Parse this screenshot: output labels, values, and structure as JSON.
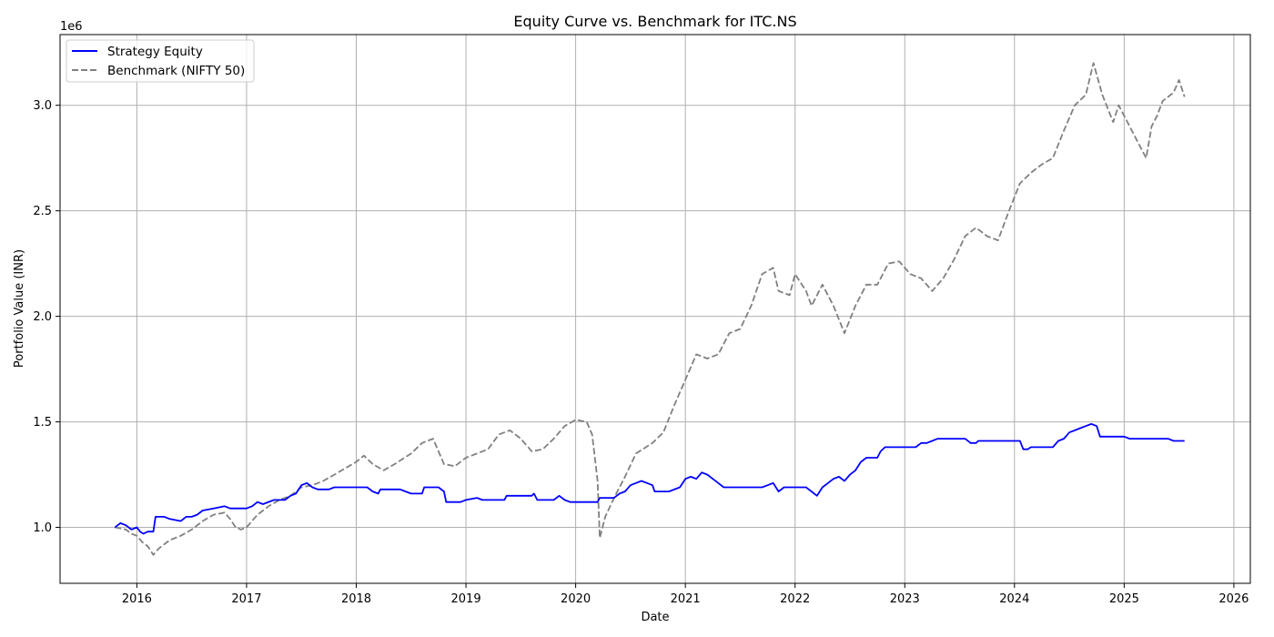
{
  "chart_data": {
    "type": "line",
    "title": "Equity Curve vs. Benchmark for ITC.NS",
    "xlabel": "Date",
    "ylabel": "Portfolio Value (INR)",
    "y_scale_label": "1e6",
    "xlim": [
      2015.3,
      2026.15
    ],
    "ylim": [
      0.735,
      3.335
    ],
    "x_ticks": [
      2016,
      2017,
      2018,
      2019,
      2020,
      2021,
      2022,
      2023,
      2024,
      2025,
      2026
    ],
    "x_tick_labels": [
      "2016",
      "2017",
      "2018",
      "2019",
      "2020",
      "2021",
      "2022",
      "2023",
      "2024",
      "2025",
      "2026"
    ],
    "y_ticks": [
      1.0,
      1.5,
      2.0,
      2.5,
      3.0
    ],
    "y_tick_labels": [
      "1.0",
      "1.5",
      "2.0",
      "2.5",
      "3.0"
    ],
    "grid": true,
    "legend_position": "top-left",
    "series": [
      {
        "name": "Strategy Equity",
        "color": "#0000ff",
        "style": "solid",
        "points": [
          [
            2015.8,
            1.0
          ],
          [
            2015.85,
            1.02
          ],
          [
            2015.9,
            1.01
          ],
          [
            2015.95,
            0.99
          ],
          [
            2016.0,
            1.0
          ],
          [
            2016.03,
            0.98
          ],
          [
            2016.06,
            0.97
          ],
          [
            2016.1,
            0.98
          ],
          [
            2016.15,
            0.98
          ],
          [
            2016.17,
            1.05
          ],
          [
            2016.25,
            1.05
          ],
          [
            2016.3,
            1.04
          ],
          [
            2016.4,
            1.03
          ],
          [
            2016.45,
            1.05
          ],
          [
            2016.5,
            1.05
          ],
          [
            2016.55,
            1.06
          ],
          [
            2016.6,
            1.08
          ],
          [
            2016.7,
            1.09
          ],
          [
            2016.8,
            1.1
          ],
          [
            2016.85,
            1.09
          ],
          [
            2016.95,
            1.09
          ],
          [
            2017.0,
            1.09
          ],
          [
            2017.05,
            1.1
          ],
          [
            2017.1,
            1.12
          ],
          [
            2017.15,
            1.11
          ],
          [
            2017.25,
            1.13
          ],
          [
            2017.35,
            1.13
          ],
          [
            2017.4,
            1.15
          ],
          [
            2017.45,
            1.16
          ],
          [
            2017.5,
            1.2
          ],
          [
            2017.55,
            1.21
          ],
          [
            2017.6,
            1.19
          ],
          [
            2017.65,
            1.18
          ],
          [
            2017.75,
            1.18
          ],
          [
            2017.8,
            1.19
          ],
          [
            2017.9,
            1.19
          ],
          [
            2018.0,
            1.19
          ],
          [
            2018.1,
            1.19
          ],
          [
            2018.15,
            1.17
          ],
          [
            2018.2,
            1.16
          ],
          [
            2018.22,
            1.18
          ],
          [
            2018.4,
            1.18
          ],
          [
            2018.45,
            1.17
          ],
          [
            2018.5,
            1.16
          ],
          [
            2018.6,
            1.16
          ],
          [
            2018.62,
            1.19
          ],
          [
            2018.75,
            1.19
          ],
          [
            2018.8,
            1.17
          ],
          [
            2018.82,
            1.12
          ],
          [
            2018.95,
            1.12
          ],
          [
            2019.0,
            1.13
          ],
          [
            2019.1,
            1.14
          ],
          [
            2019.15,
            1.13
          ],
          [
            2019.3,
            1.13
          ],
          [
            2019.35,
            1.13
          ],
          [
            2019.37,
            1.15
          ],
          [
            2019.5,
            1.15
          ],
          [
            2019.6,
            1.15
          ],
          [
            2019.62,
            1.16
          ],
          [
            2019.65,
            1.13
          ],
          [
            2019.8,
            1.13
          ],
          [
            2019.85,
            1.15
          ],
          [
            2019.9,
            1.13
          ],
          [
            2019.95,
            1.12
          ],
          [
            2020.1,
            1.12
          ],
          [
            2020.15,
            1.12
          ],
          [
            2020.2,
            1.12
          ],
          [
            2020.22,
            1.14
          ],
          [
            2020.35,
            1.14
          ],
          [
            2020.4,
            1.16
          ],
          [
            2020.45,
            1.17
          ],
          [
            2020.5,
            1.2
          ],
          [
            2020.55,
            1.21
          ],
          [
            2020.6,
            1.22
          ],
          [
            2020.65,
            1.21
          ],
          [
            2020.7,
            1.2
          ],
          [
            2020.72,
            1.17
          ],
          [
            2020.85,
            1.17
          ],
          [
            2020.95,
            1.19
          ],
          [
            2021.0,
            1.23
          ],
          [
            2021.05,
            1.24
          ],
          [
            2021.1,
            1.23
          ],
          [
            2021.15,
            1.26
          ],
          [
            2021.2,
            1.25
          ],
          [
            2021.25,
            1.23
          ],
          [
            2021.3,
            1.21
          ],
          [
            2021.35,
            1.19
          ],
          [
            2021.5,
            1.19
          ],
          [
            2021.6,
            1.19
          ],
          [
            2021.7,
            1.19
          ],
          [
            2021.75,
            1.2
          ],
          [
            2021.8,
            1.21
          ],
          [
            2021.85,
            1.17
          ],
          [
            2021.9,
            1.19
          ],
          [
            2022.0,
            1.19
          ],
          [
            2022.1,
            1.19
          ],
          [
            2022.15,
            1.17
          ],
          [
            2022.2,
            1.15
          ],
          [
            2022.25,
            1.19
          ],
          [
            2022.3,
            1.21
          ],
          [
            2022.35,
            1.23
          ],
          [
            2022.4,
            1.24
          ],
          [
            2022.45,
            1.22
          ],
          [
            2022.5,
            1.25
          ],
          [
            2022.55,
            1.27
          ],
          [
            2022.6,
            1.31
          ],
          [
            2022.65,
            1.33
          ],
          [
            2022.75,
            1.33
          ],
          [
            2022.78,
            1.36
          ],
          [
            2022.82,
            1.38
          ],
          [
            2023.0,
            1.38
          ],
          [
            2023.1,
            1.38
          ],
          [
            2023.15,
            1.4
          ],
          [
            2023.2,
            1.4
          ],
          [
            2023.25,
            1.41
          ],
          [
            2023.3,
            1.42
          ],
          [
            2023.55,
            1.42
          ],
          [
            2023.6,
            1.4
          ],
          [
            2023.65,
            1.4
          ],
          [
            2023.67,
            1.41
          ],
          [
            2024.0,
            1.41
          ],
          [
            2024.05,
            1.41
          ],
          [
            2024.08,
            1.37
          ],
          [
            2024.12,
            1.37
          ],
          [
            2024.15,
            1.38
          ],
          [
            2024.35,
            1.38
          ],
          [
            2024.4,
            1.41
          ],
          [
            2024.45,
            1.42
          ],
          [
            2024.5,
            1.45
          ],
          [
            2024.55,
            1.46
          ],
          [
            2024.6,
            1.47
          ],
          [
            2024.65,
            1.48
          ],
          [
            2024.7,
            1.49
          ],
          [
            2024.75,
            1.48
          ],
          [
            2024.78,
            1.43
          ],
          [
            2024.9,
            1.43
          ],
          [
            2025.0,
            1.43
          ],
          [
            2025.05,
            1.42
          ],
          [
            2025.3,
            1.42
          ],
          [
            2025.4,
            1.42
          ],
          [
            2025.45,
            1.41
          ],
          [
            2025.55,
            1.41
          ]
        ]
      },
      {
        "name": "Benchmark (NIFTY 50)",
        "color": "#808080",
        "style": "dashed",
        "points": [
          [
            2015.8,
            1.0
          ],
          [
            2015.9,
            0.99
          ],
          [
            2015.95,
            0.97
          ],
          [
            2016.0,
            0.96
          ],
          [
            2016.05,
            0.93
          ],
          [
            2016.1,
            0.91
          ],
          [
            2016.15,
            0.87
          ],
          [
            2016.2,
            0.9
          ],
          [
            2016.3,
            0.94
          ],
          [
            2016.4,
            0.96
          ],
          [
            2016.5,
            0.99
          ],
          [
            2016.6,
            1.03
          ],
          [
            2016.7,
            1.06
          ],
          [
            2016.8,
            1.07
          ],
          [
            2016.85,
            1.04
          ],
          [
            2016.9,
            1.0
          ],
          [
            2016.95,
            0.99
          ],
          [
            2017.0,
            1.0
          ],
          [
            2017.1,
            1.06
          ],
          [
            2017.2,
            1.1
          ],
          [
            2017.3,
            1.13
          ],
          [
            2017.4,
            1.15
          ],
          [
            2017.5,
            1.19
          ],
          [
            2017.6,
            1.2
          ],
          [
            2017.7,
            1.22
          ],
          [
            2017.8,
            1.25
          ],
          [
            2017.9,
            1.28
          ],
          [
            2018.0,
            1.31
          ],
          [
            2018.07,
            1.34
          ],
          [
            2018.15,
            1.3
          ],
          [
            2018.25,
            1.27
          ],
          [
            2018.35,
            1.3
          ],
          [
            2018.5,
            1.35
          ],
          [
            2018.6,
            1.4
          ],
          [
            2018.7,
            1.42
          ],
          [
            2018.8,
            1.3
          ],
          [
            2018.9,
            1.29
          ],
          [
            2019.0,
            1.33
          ],
          [
            2019.1,
            1.35
          ],
          [
            2019.2,
            1.37
          ],
          [
            2019.3,
            1.44
          ],
          [
            2019.4,
            1.46
          ],
          [
            2019.5,
            1.42
          ],
          [
            2019.6,
            1.36
          ],
          [
            2019.7,
            1.37
          ],
          [
            2019.8,
            1.42
          ],
          [
            2019.9,
            1.48
          ],
          [
            2020.0,
            1.51
          ],
          [
            2020.1,
            1.5
          ],
          [
            2020.15,
            1.44
          ],
          [
            2020.2,
            1.22
          ],
          [
            2020.22,
            0.95
          ],
          [
            2020.27,
            1.05
          ],
          [
            2020.35,
            1.14
          ],
          [
            2020.45,
            1.24
          ],
          [
            2020.55,
            1.35
          ],
          [
            2020.7,
            1.4
          ],
          [
            2020.8,
            1.45
          ],
          [
            2020.9,
            1.58
          ],
          [
            2021.0,
            1.7
          ],
          [
            2021.1,
            1.82
          ],
          [
            2021.2,
            1.8
          ],
          [
            2021.3,
            1.82
          ],
          [
            2021.4,
            1.92
          ],
          [
            2021.5,
            1.94
          ],
          [
            2021.6,
            2.05
          ],
          [
            2021.7,
            2.2
          ],
          [
            2021.8,
            2.23
          ],
          [
            2021.85,
            2.12
          ],
          [
            2021.95,
            2.1
          ],
          [
            2022.0,
            2.2
          ],
          [
            2022.1,
            2.12
          ],
          [
            2022.15,
            2.05
          ],
          [
            2022.25,
            2.15
          ],
          [
            2022.35,
            2.05
          ],
          [
            2022.45,
            1.92
          ],
          [
            2022.55,
            2.05
          ],
          [
            2022.65,
            2.15
          ],
          [
            2022.75,
            2.15
          ],
          [
            2022.85,
            2.25
          ],
          [
            2022.95,
            2.26
          ],
          [
            2023.05,
            2.2
          ],
          [
            2023.15,
            2.18
          ],
          [
            2023.25,
            2.12
          ],
          [
            2023.35,
            2.18
          ],
          [
            2023.45,
            2.27
          ],
          [
            2023.55,
            2.38
          ],
          [
            2023.65,
            2.42
          ],
          [
            2023.75,
            2.38
          ],
          [
            2023.85,
            2.36
          ],
          [
            2023.95,
            2.5
          ],
          [
            2024.05,
            2.63
          ],
          [
            2024.15,
            2.68
          ],
          [
            2024.25,
            2.72
          ],
          [
            2024.35,
            2.75
          ],
          [
            2024.45,
            2.88
          ],
          [
            2024.55,
            3.0
          ],
          [
            2024.65,
            3.05
          ],
          [
            2024.72,
            3.2
          ],
          [
            2024.8,
            3.05
          ],
          [
            2024.9,
            2.92
          ],
          [
            2024.95,
            3.0
          ],
          [
            2025.0,
            2.95
          ],
          [
            2025.1,
            2.85
          ],
          [
            2025.2,
            2.75
          ],
          [
            2025.25,
            2.9
          ],
          [
            2025.3,
            2.95
          ],
          [
            2025.35,
            3.02
          ],
          [
            2025.45,
            3.06
          ],
          [
            2025.5,
            3.12
          ],
          [
            2025.55,
            3.04
          ]
        ]
      }
    ]
  }
}
